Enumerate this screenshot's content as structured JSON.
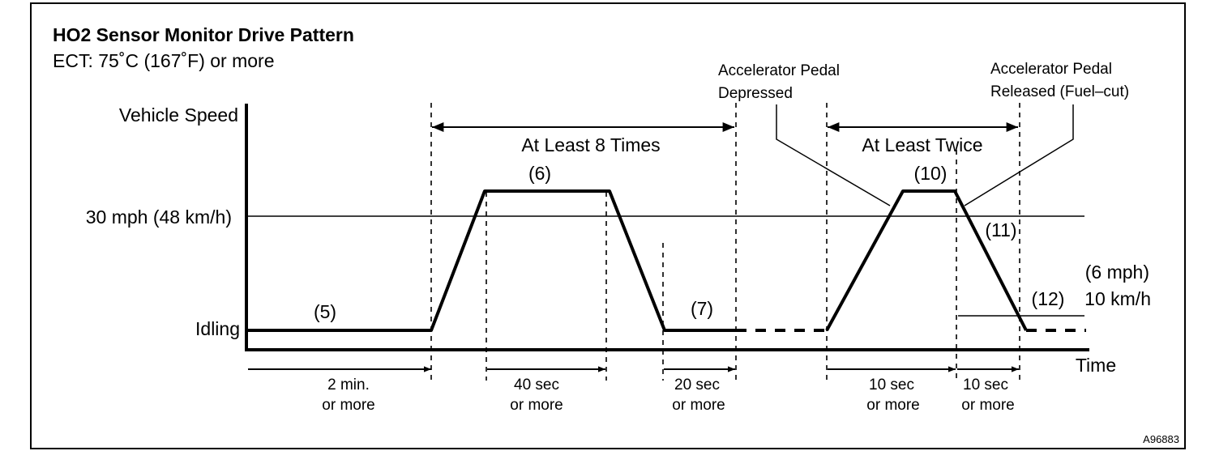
{
  "title": "HO2 Sensor Monitor Drive Pattern",
  "subtitle": "ECT: 75˚C (167˚F) or more",
  "y_axis": {
    "label": "Vehicle Speed",
    "levels": {
      "speed_30": "30 mph (48 km/h)",
      "idling": "Idling"
    },
    "small_level_mph": "(6 mph)",
    "small_level_kmh": "10 km/h"
  },
  "x_axis": {
    "label": "Time"
  },
  "repeat_labels": {
    "at_least_8": "At Least 8 Times",
    "at_least_twice": "At Least Twice"
  },
  "callouts": {
    "pedal_depressed_1": "Accelerator Pedal",
    "pedal_depressed_2": "Depressed",
    "pedal_released_1": "Accelerator Pedal",
    "pedal_released_2": "Released (Fuel–cut)"
  },
  "steps": {
    "s5": "(5)",
    "s6": "(6)",
    "s7": "(7)",
    "s10": "(10)",
    "s11": "(11)",
    "s12": "(12)"
  },
  "durations": [
    {
      "line1": "2 min.",
      "line2": "or more"
    },
    {
      "line1": "40 sec",
      "line2": "or more"
    },
    {
      "line1": "20 sec",
      "line2": "or more"
    },
    {
      "line1": "10 sec",
      "line2": "or more"
    },
    {
      "line1": "10 sec",
      "line2": "or more"
    }
  ],
  "figure_id": "A96883"
}
